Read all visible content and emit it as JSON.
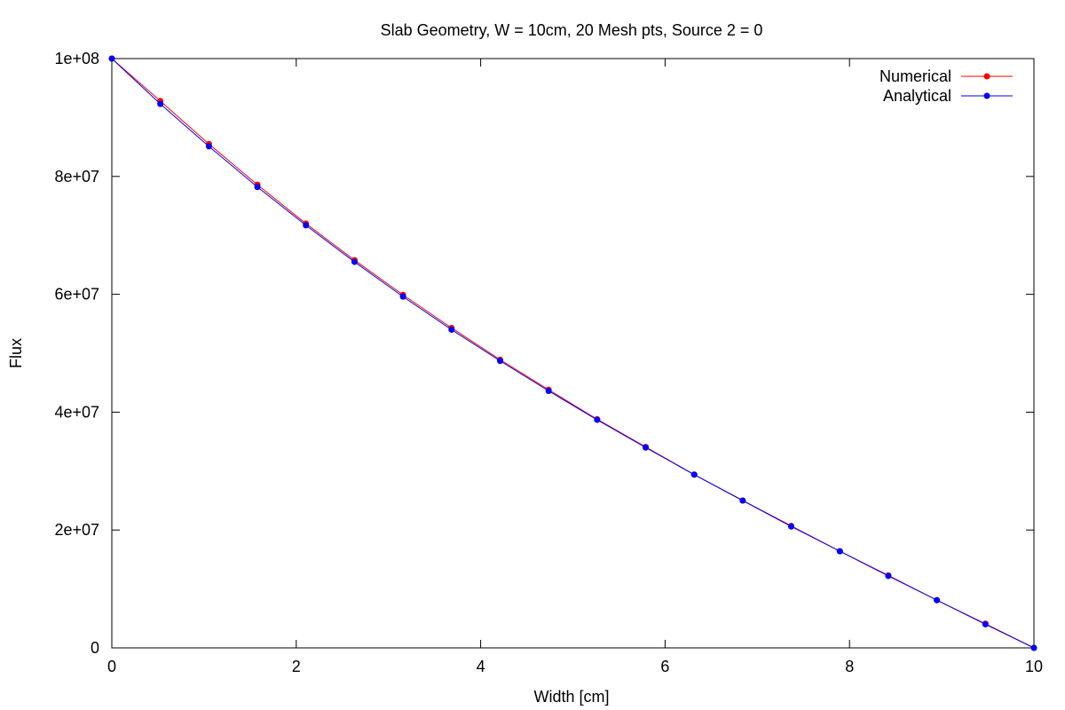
{
  "chart_data": {
    "type": "line",
    "title": "Slab Geometry, W = 10cm, 20 Mesh pts, Source 2 = 0",
    "xlabel": "Width [cm]",
    "ylabel": "Flux",
    "xlim": [
      0,
      10
    ],
    "ylim": [
      0,
      100000000
    ],
    "x_ticks": [
      0,
      2,
      4,
      6,
      8,
      10
    ],
    "x_tick_labels": [
      "0",
      "2",
      "4",
      "6",
      "8",
      "10"
    ],
    "y_ticks": [
      0,
      20000000,
      40000000,
      60000000,
      80000000,
      100000000
    ],
    "y_tick_labels": [
      "0",
      "2e+07",
      "4e+07",
      "6e+07",
      "8e+07",
      "1e+08"
    ],
    "grid": false,
    "legend_position": "top-right",
    "series": [
      {
        "name": "Numerical",
        "color": "#ff0000",
        "x": [
          0,
          0.526,
          1.053,
          1.579,
          2.105,
          2.632,
          3.158,
          3.684,
          4.211,
          4.737,
          5.263,
          5.789,
          6.316,
          6.842,
          7.368,
          7.895,
          8.421,
          8.947,
          9.474,
          10
        ],
        "y": [
          100000000,
          92800000,
          85500000,
          78600000,
          72000000,
          65800000,
          59900000,
          54300000,
          48900000,
          43800000,
          38800000,
          34100000,
          29400000,
          25000000,
          20700000,
          16400000,
          12300000,
          8100000,
          4100000,
          0
        ]
      },
      {
        "name": "Analytical",
        "color": "#0000ff",
        "x": [
          0,
          0.526,
          1.053,
          1.579,
          2.105,
          2.632,
          3.158,
          3.684,
          4.211,
          4.737,
          5.263,
          5.789,
          6.316,
          6.842,
          7.368,
          7.895,
          8.421,
          8.947,
          9.474,
          10
        ],
        "y": [
          100000000,
          92300000,
          85100000,
          78200000,
          71700000,
          65500000,
          59600000,
          54000000,
          48700000,
          43600000,
          38700000,
          34000000,
          29400000,
          25000000,
          20600000,
          16400000,
          12200000,
          8100000,
          4000000,
          0
        ]
      }
    ]
  }
}
